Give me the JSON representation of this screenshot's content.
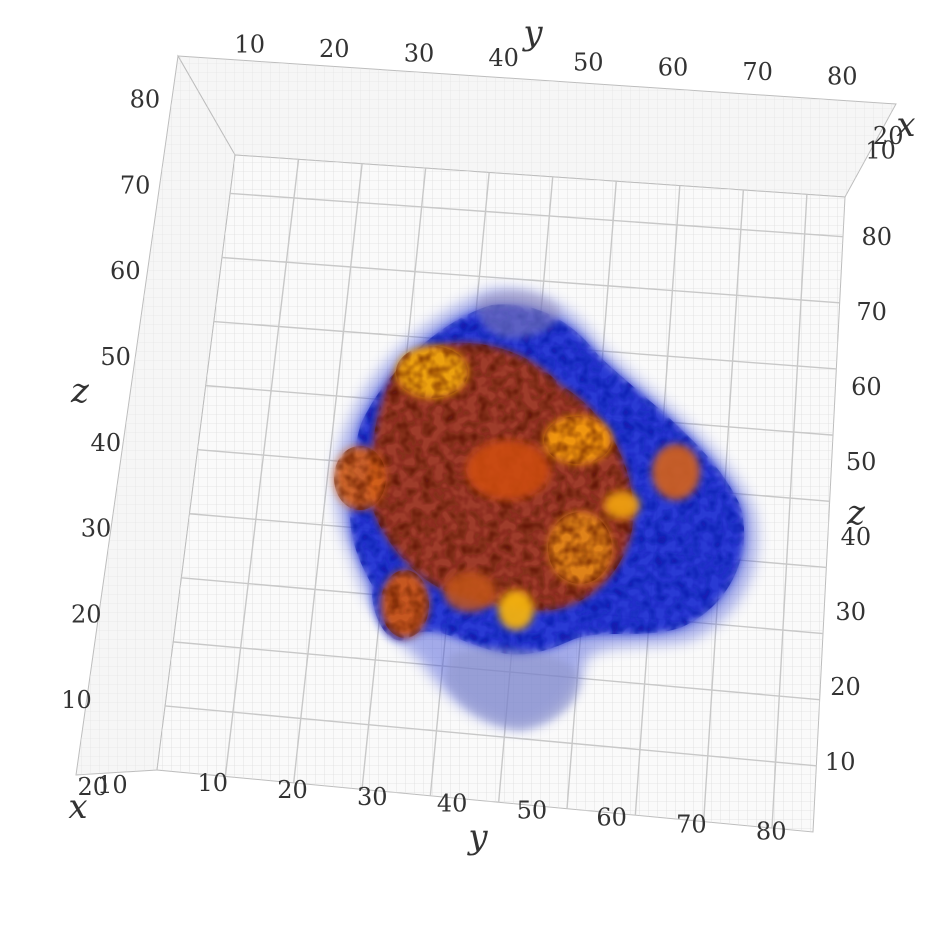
{
  "chart_data": {
    "type": "3d-volume",
    "axes": {
      "top_y": {
        "label": "y",
        "ticks": [
          "10",
          "20",
          "30",
          "40",
          "50",
          "60",
          "70",
          "80"
        ]
      },
      "bottom_y": {
        "label": "y",
        "ticks": [
          "10",
          "20",
          "30",
          "40",
          "50",
          "60",
          "70",
          "80"
        ]
      },
      "left_z": {
        "label": "z",
        "ticks": [
          "10",
          "20",
          "30",
          "40",
          "50",
          "60",
          "70",
          "80"
        ]
      },
      "right_z": {
        "label": "z",
        "ticks": [
          "10",
          "20",
          "30",
          "40",
          "50",
          "60",
          "70",
          "80"
        ]
      },
      "bottom_x": {
        "label": "x",
        "ticks": [
          "10",
          "20"
        ]
      },
      "top_x": {
        "label": "x",
        "ticks": [
          "10",
          "20"
        ]
      }
    },
    "ranges": {
      "x": [
        0,
        25
      ],
      "y": [
        0,
        88
      ],
      "z": [
        0,
        88
      ]
    },
    "grid": true,
    "colors": {
      "grid": "#c8c8c8",
      "pane": "#f7f7f7",
      "low_intensity": "#1a2bd0",
      "mid_intensity": "#c8480f",
      "high_intensity": "#f2a70c"
    }
  }
}
